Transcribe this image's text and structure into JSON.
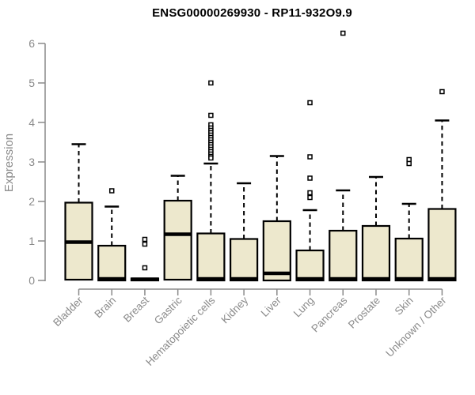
{
  "header": {
    "title": "ENSG00000269930 - RP11-932O9.9"
  },
  "chart_data": {
    "type": "boxplot",
    "title": "ENSG00000269930 - RP11-932O9.9",
    "xlabel": "",
    "ylabel": "Expression",
    "ylim": [
      0,
      6
    ],
    "yticks": [
      0,
      1,
      2,
      3,
      4,
      5,
      6
    ],
    "grid": false,
    "legend": "none",
    "colors": {
      "box_fill": "#EDE8CD",
      "box_stroke": "#000000",
      "median": "#000000",
      "outlier_stroke": "#000000",
      "axis": "#8A8A8A",
      "title": "#000000",
      "background": "#FFFFFF"
    },
    "categories": [
      "Bladder",
      "Brain",
      "Breast",
      "Gastric",
      "Hematopoietic cells",
      "Kidney",
      "Liver",
      "Lung",
      "Pancreas",
      "Prostate",
      "Skin",
      "Unknown / Other"
    ],
    "series": [
      {
        "category": "Bladder",
        "low": 0.02,
        "q1": 0.02,
        "median": 0.97,
        "q3": 1.97,
        "high": 3.45,
        "outliers": []
      },
      {
        "category": "Brain",
        "low": 0.0,
        "q1": 0.0,
        "median": 0.04,
        "q3": 0.88,
        "high": 1.87,
        "outliers": [
          2.27
        ]
      },
      {
        "category": "Breast",
        "low": 0.0,
        "q1": 0.0,
        "median": 0.03,
        "q3": 0.05,
        "high": 0.05,
        "outliers": [
          1.04,
          0.92,
          0.32
        ]
      },
      {
        "category": "Gastric",
        "low": 0.02,
        "q1": 0.02,
        "median": 1.17,
        "q3": 2.02,
        "high": 2.65,
        "outliers": []
      },
      {
        "category": "Hematopoietic cells",
        "low": 0.0,
        "q1": 0.0,
        "median": 0.04,
        "q3": 1.19,
        "high": 2.96,
        "outliers": [
          5.0,
          4.18,
          3.94,
          3.86,
          3.8,
          3.74,
          3.68,
          3.62,
          3.56,
          3.5,
          3.44,
          3.38,
          3.32,
          3.26,
          3.2,
          3.14,
          3.1
        ]
      },
      {
        "category": "Kidney",
        "low": 0.0,
        "q1": 0.0,
        "median": 0.04,
        "q3": 1.05,
        "high": 2.46,
        "outliers": []
      },
      {
        "category": "Liver",
        "low": 0.0,
        "q1": 0.0,
        "median": 0.18,
        "q3": 1.5,
        "high": 3.15,
        "outliers": []
      },
      {
        "category": "Lung",
        "low": 0.0,
        "q1": 0.0,
        "median": 0.04,
        "q3": 0.76,
        "high": 1.78,
        "outliers": [
          4.5,
          3.13,
          2.59,
          2.22,
          2.1
        ]
      },
      {
        "category": "Pancreas",
        "low": 0.0,
        "q1": 0.0,
        "median": 0.04,
        "q3": 1.26,
        "high": 2.28,
        "outliers": [
          6.26
        ]
      },
      {
        "category": "Prostate",
        "low": 0.0,
        "q1": 0.0,
        "median": 0.04,
        "q3": 1.38,
        "high": 2.62,
        "outliers": []
      },
      {
        "category": "Skin",
        "low": 0.0,
        "q1": 0.0,
        "median": 0.04,
        "q3": 1.06,
        "high": 1.94,
        "outliers": [
          3.06,
          2.96
        ]
      },
      {
        "category": "Unknown / Other",
        "low": 0.0,
        "q1": 0.0,
        "median": 0.04,
        "q3": 1.81,
        "high": 4.05,
        "outliers": [
          4.78
        ]
      }
    ]
  }
}
